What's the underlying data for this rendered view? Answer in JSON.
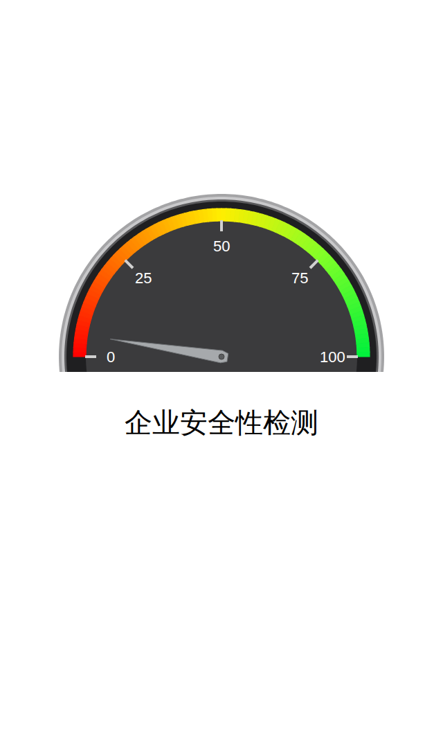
{
  "chart_data": {
    "type": "gauge",
    "title": "企业安全性检测",
    "value": 5,
    "ylim": [
      0,
      100
    ],
    "yticks": [
      0,
      25,
      50,
      75,
      100
    ]
  }
}
